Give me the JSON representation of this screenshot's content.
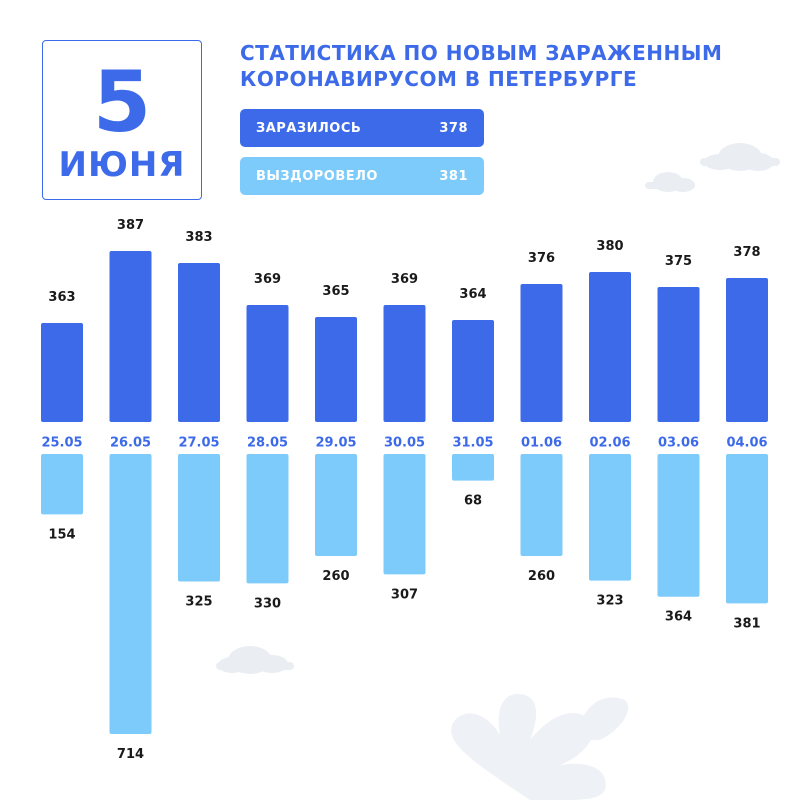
{
  "header": {
    "day": "5",
    "month": "ИЮНЯ",
    "title_line1": "СТАТИСТИКА ПО НОВЫМ ЗАРАЖЕННЫМ",
    "title_line2": "КОРОНАВИРУСОМ В ПЕТЕРБУРГЕ"
  },
  "summary": {
    "infected_label": "ЗАРАЗИЛОСЬ",
    "infected_value": "378",
    "recovered_label": "ВЫЗДОРОВЕЛО",
    "recovered_value": "381"
  },
  "colors": {
    "infected": "#3d6ae8",
    "recovered": "#7dcbfa",
    "accent": "#3d6ae8",
    "date_label": "#3d6ae8",
    "value_text": "#1a1a1a",
    "decoration": "#eaeef3"
  },
  "chart_data": {
    "type": "bar",
    "categories": [
      "25.05",
      "26.05",
      "27.05",
      "28.05",
      "29.05",
      "30.05",
      "31.05",
      "01.06",
      "02.06",
      "03.06",
      "04.06"
    ],
    "series": [
      {
        "name": "ЗАРАЗИЛОСЬ",
        "values": [
          363,
          387,
          383,
          369,
          365,
          369,
          364,
          376,
          380,
          375,
          378
        ],
        "direction": "up"
      },
      {
        "name": "ВЫЗДОРОВЕЛО",
        "values": [
          154,
          714,
          325,
          330,
          260,
          307,
          68,
          260,
          323,
          364,
          381
        ],
        "direction": "down"
      }
    ],
    "title": "",
    "xlabel": "",
    "ylabel": "",
    "grid": false,
    "legend": "top"
  }
}
